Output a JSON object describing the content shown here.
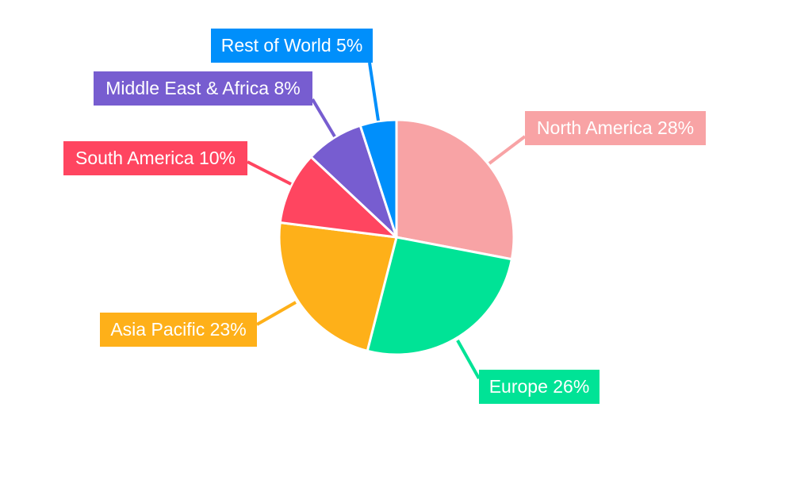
{
  "chart_data": {
    "type": "pie",
    "title": "",
    "start_angle_deg": 0,
    "direction": "clockwise",
    "slices": [
      {
        "label": "North America",
        "value": 28,
        "text": "North America 28%",
        "color": "#F8A3A5"
      },
      {
        "label": "Europe",
        "value": 26,
        "text": "Europe 26%",
        "color": "#00E396"
      },
      {
        "label": "Asia Pacific",
        "value": 23,
        "text": "Asia Pacific 23%",
        "color": "#FEB019"
      },
      {
        "label": "South America",
        "value": 10,
        "text": "South America 10%",
        "color": "#FF4560"
      },
      {
        "label": "Middle East & Africa",
        "value": 8,
        "text": "Middle East & Africa 8%",
        "color": "#775DD0"
      },
      {
        "label": "Rest of World",
        "value": 5,
        "text": "Rest of World 5%",
        "color": "#008FFB"
      }
    ]
  }
}
